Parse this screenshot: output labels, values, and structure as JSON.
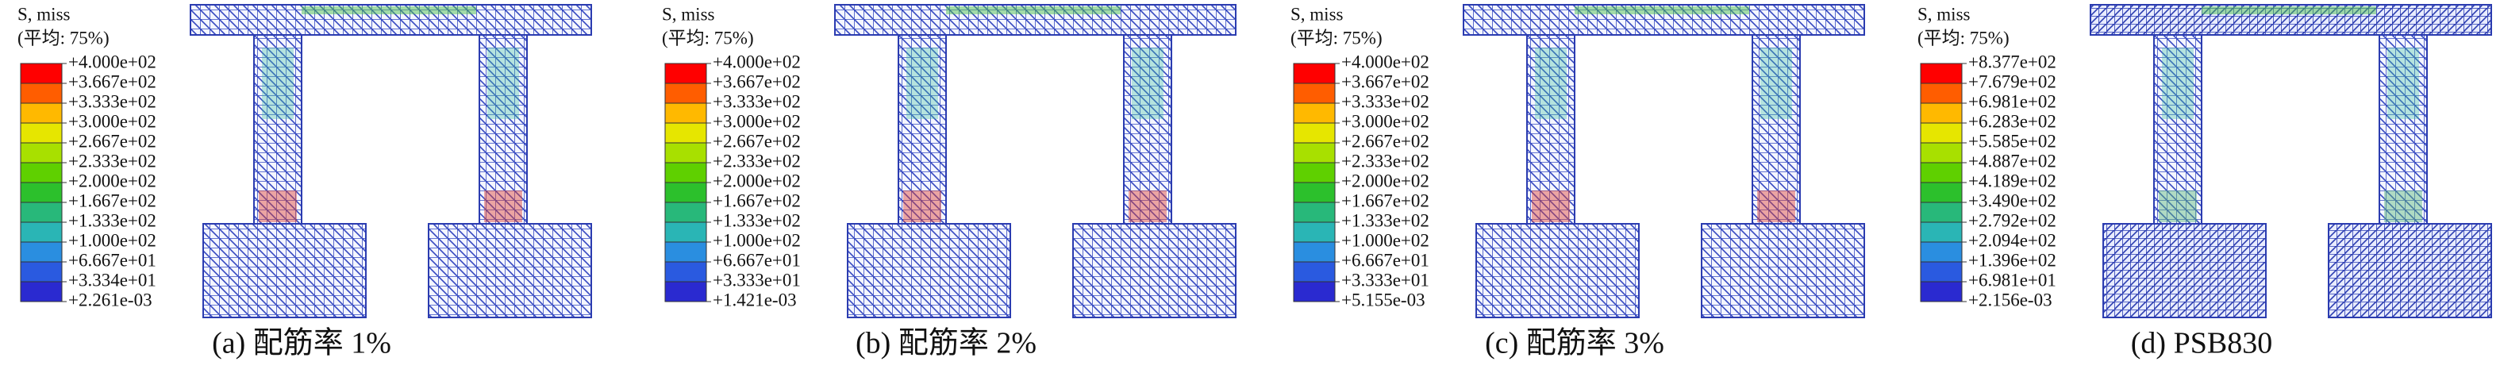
{
  "panels": [
    {
      "legend_title": "S, miss",
      "legend_subtitle": "(平均: 75%)",
      "legend_labels": [
        "+4.000e+02",
        "+3.667e+02",
        "+3.333e+02",
        "+3.000e+02",
        "+2.667e+02",
        "+2.333e+02",
        "+2.000e+02",
        "+1.667e+02",
        "+1.333e+02",
        "+1.000e+02",
        "+6.667e+01",
        "+3.334e+01",
        "+2.261e-03"
      ],
      "caption": "(a) 配筋率 1%"
    },
    {
      "legend_title": "S, miss",
      "legend_subtitle": "(平均: 75%)",
      "legend_labels": [
        "+4.000e+02",
        "+3.667e+02",
        "+3.333e+02",
        "+3.000e+02",
        "+2.667e+02",
        "+2.333e+02",
        "+2.000e+02",
        "+1.667e+02",
        "+1.333e+02",
        "+1.000e+02",
        "+6.667e+01",
        "+3.333e+01",
        "+1.421e-03"
      ],
      "caption": "(b) 配筋率 2%"
    },
    {
      "legend_title": "S, miss",
      "legend_subtitle": "(平均: 75%)",
      "legend_labels": [
        "+4.000e+02",
        "+3.667e+02",
        "+3.333e+02",
        "+3.000e+02",
        "+2.667e+02",
        "+2.333e+02",
        "+2.000e+02",
        "+1.667e+02",
        "+1.333e+02",
        "+1.000e+02",
        "+6.667e+01",
        "+3.333e+01",
        "+5.155e-03"
      ],
      "caption": "(c) 配筋率 3%"
    },
    {
      "legend_title": "S, miss",
      "legend_subtitle": "(平均: 75%)",
      "legend_labels": [
        "+8.377e+02",
        "+7.679e+02",
        "+6.981e+02",
        "+6.283e+02",
        "+5.585e+02",
        "+4.887e+02",
        "+4.189e+02",
        "+3.490e+02",
        "+2.792e+02",
        "+2.094e+02",
        "+1.396e+02",
        "+6.981e+01",
        "+2.156e-03"
      ],
      "caption": "(d) PSB830"
    }
  ],
  "legend_colors": [
    "#ff0000",
    "#ff5d00",
    "#ffb900",
    "#e6e600",
    "#a8e000",
    "#5fd000",
    "#2cc02c",
    "#28b87a",
    "#2ab5b5",
    "#2a8ee0",
    "#2a5ae0",
    "#2a2ad0"
  ]
}
